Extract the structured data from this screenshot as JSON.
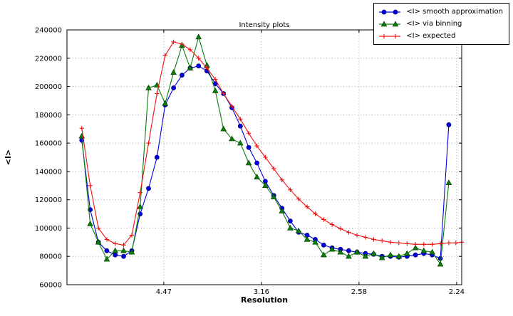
{
  "chart_data": {
    "type": "line",
    "title": "Intensity plots",
    "xlabel": "Resolution",
    "ylabel": "<I>",
    "x_axis_note": "x values are 1/d^2; tick labels show resolution d",
    "xlim": [
      0.0004,
      0.2026
    ],
    "ylim": [
      60000,
      240000
    ],
    "grid": true,
    "grid_style": "dotted",
    "legend": {
      "position": "upper right"
    },
    "xticks": [
      {
        "value": 0.05,
        "label": "4.47"
      },
      {
        "value": 0.1,
        "label": "3.16"
      },
      {
        "value": 0.15,
        "label": "2.58"
      },
      {
        "value": 0.2,
        "label": "2.24"
      }
    ],
    "yticks": [
      {
        "value": 60000,
        "label": "60000"
      },
      {
        "value": 80000,
        "label": "80000"
      },
      {
        "value": 100000,
        "label": "100000"
      },
      {
        "value": 120000,
        "label": "120000"
      },
      {
        "value": 140000,
        "label": "140000"
      },
      {
        "value": 160000,
        "label": "160000"
      },
      {
        "value": 180000,
        "label": "180000"
      },
      {
        "value": 200000,
        "label": "200000"
      },
      {
        "value": 220000,
        "label": "220000"
      },
      {
        "value": 240000,
        "label": "240000"
      }
    ],
    "series": [
      {
        "name": "<I> smooth approximation",
        "color": "#0000e0",
        "edge_color": "#000060",
        "marker": "circle",
        "x": [
          0.008,
          0.0123,
          0.0165,
          0.0208,
          0.0251,
          0.0294,
          0.0336,
          0.0379,
          0.0422,
          0.0465,
          0.0507,
          0.055,
          0.0593,
          0.0635,
          0.0678,
          0.0721,
          0.0764,
          0.0806,
          0.0849,
          0.0892,
          0.0935,
          0.0977,
          0.102,
          0.1063,
          0.1105,
          0.1148,
          0.1191,
          0.1234,
          0.1276,
          0.1319,
          0.1362,
          0.1405,
          0.1447,
          0.149,
          0.1533,
          0.1575,
          0.1618,
          0.1661,
          0.1704,
          0.1746,
          0.1789,
          0.1832,
          0.1875,
          0.1917,
          0.196
        ],
        "y": [
          162000,
          113000,
          90000,
          84000,
          81000,
          80000,
          84000,
          110000,
          128000,
          150000,
          187000,
          199000,
          208000,
          213000,
          214500,
          211000,
          202000,
          195000,
          185000,
          172000,
          157000,
          146000,
          133000,
          123000,
          114000,
          105000,
          97000,
          95000,
          92000,
          88000,
          86000,
          85000,
          84000,
          83000,
          82000,
          81500,
          80000,
          80000,
          79500,
          80000,
          81000,
          82000,
          81000,
          78500,
          173000
        ]
      },
      {
        "name": "<I> via binning",
        "color": "#0a7d0a",
        "edge_color": "#013801",
        "marker": "triangle_up",
        "x": [
          0.008,
          0.0123,
          0.0165,
          0.0208,
          0.0251,
          0.0294,
          0.0336,
          0.0379,
          0.0422,
          0.0465,
          0.0507,
          0.055,
          0.0593,
          0.0635,
          0.0678,
          0.0721,
          0.0764,
          0.0806,
          0.0849,
          0.0892,
          0.0935,
          0.0977,
          0.102,
          0.1063,
          0.1105,
          0.1148,
          0.1191,
          0.1234,
          0.1276,
          0.1319,
          0.1362,
          0.1405,
          0.1447,
          0.149,
          0.1533,
          0.1575,
          0.1618,
          0.1661,
          0.1704,
          0.1746,
          0.1789,
          0.1832,
          0.1875,
          0.1917,
          0.196
        ],
        "y": [
          165000,
          103000,
          90000,
          78000,
          84000,
          84000,
          83000,
          115000,
          199000,
          201000,
          188000,
          210000,
          229000,
          213000,
          235000,
          215000,
          197000,
          170000,
          163000,
          160000,
          146000,
          136000,
          130000,
          122000,
          112000,
          100000,
          98000,
          92000,
          90000,
          81000,
          85000,
          83000,
          80000,
          83000,
          80000,
          82000,
          79000,
          81000,
          80000,
          82000,
          86000,
          84000,
          83000,
          74500,
          132000
        ]
      },
      {
        "name": "<I> expected",
        "color": "#ee1111",
        "edge_color": "#ee1111",
        "marker": "plus",
        "x": [
          0.008,
          0.0123,
          0.0165,
          0.0208,
          0.0251,
          0.0294,
          0.0336,
          0.0379,
          0.0422,
          0.0465,
          0.0507,
          0.055,
          0.0593,
          0.0635,
          0.0678,
          0.0721,
          0.0764,
          0.0806,
          0.0849,
          0.0892,
          0.0935,
          0.0977,
          0.102,
          0.1063,
          0.1105,
          0.1148,
          0.1191,
          0.1234,
          0.1276,
          0.1319,
          0.1362,
          0.1405,
          0.1447,
          0.149,
          0.1533,
          0.1575,
          0.1618,
          0.1661,
          0.1704,
          0.1746,
          0.1789,
          0.1832,
          0.1875,
          0.1917,
          0.196,
          0.1996,
          0.2026
        ],
        "y": [
          170500,
          130000,
          100000,
          92000,
          89000,
          88000,
          95000,
          125000,
          160000,
          195000,
          222000,
          231500,
          230000,
          226000,
          220000,
          213000,
          205000,
          195000,
          186000,
          177000,
          167000,
          158000,
          150000,
          142000,
          134000,
          127000,
          120500,
          115000,
          110000,
          106000,
          102500,
          99500,
          97000,
          95000,
          93500,
          92000,
          91000,
          90000,
          89500,
          89000,
          88500,
          88500,
          88500,
          89000,
          89500,
          89500,
          90000
        ]
      }
    ]
  }
}
